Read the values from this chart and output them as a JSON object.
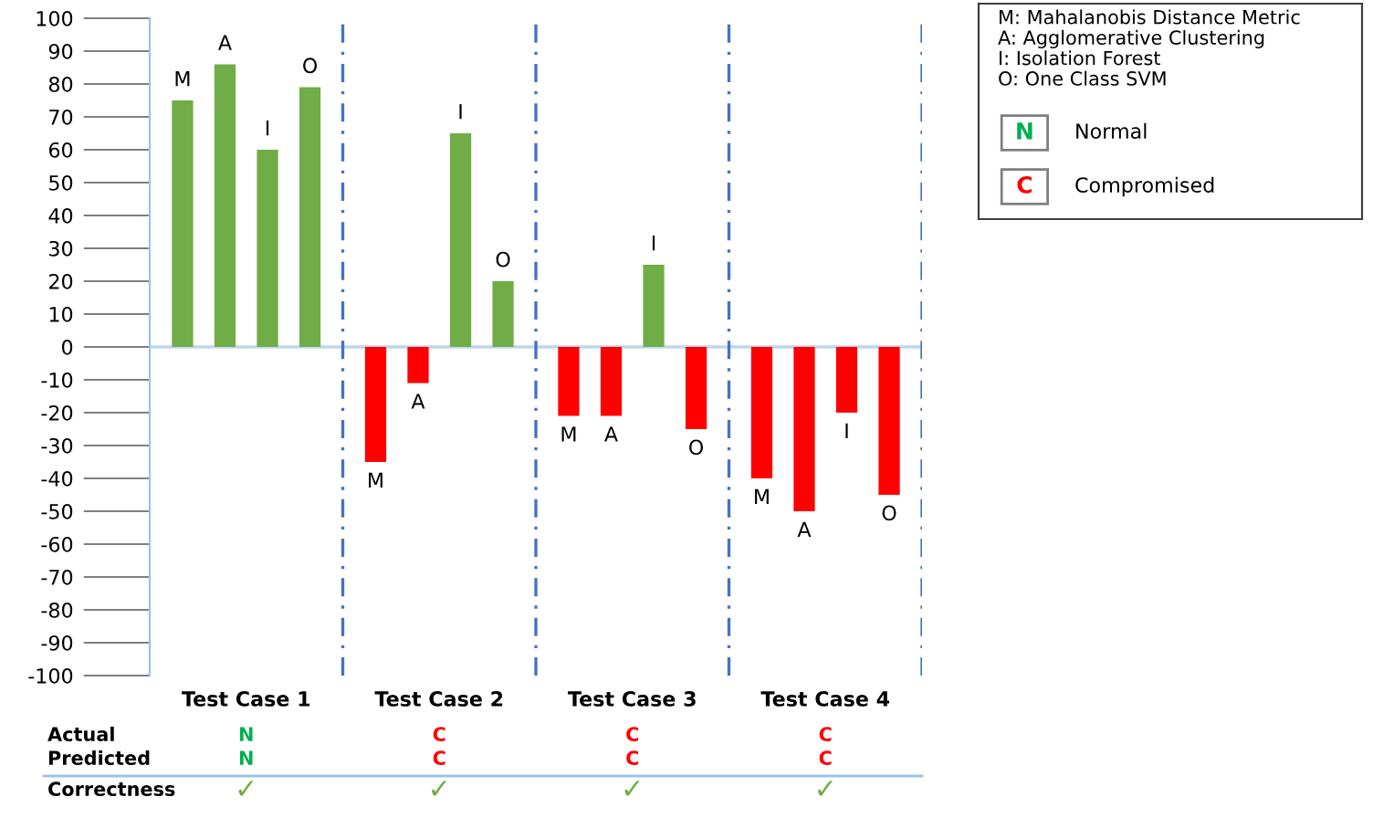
{
  "chart_data": {
    "type": "bar",
    "categories": [
      "Test Case 1",
      "Test Case 2",
      "Test Case 3",
      "Test Case 4"
    ],
    "series": [
      {
        "name": "M",
        "colors": [
          "#70ad47",
          "#ff0000",
          "#ff0000",
          "#ff0000"
        ],
        "values": [
          75,
          -35,
          -21,
          -40
        ]
      },
      {
        "name": "A",
        "colors": [
          "#70ad47",
          "#ff0000",
          "#ff0000",
          "#ff0000"
        ],
        "values": [
          86,
          -11,
          -21,
          -50
        ]
      },
      {
        "name": "I",
        "colors": [
          "#70ad47",
          "#70ad47",
          "#70ad47",
          "#ff0000"
        ],
        "values": [
          60,
          65,
          25,
          -20
        ]
      },
      {
        "name": "O",
        "colors": [
          "#70ad47",
          "#70ad47",
          "#ff0000",
          "#ff0000"
        ],
        "values": [
          79,
          20,
          -25,
          -45
        ]
      }
    ],
    "ylim": [
      -100,
      100
    ],
    "yticks": [
      -100,
      -90,
      -80,
      -70,
      -60,
      -50,
      -40,
      -30,
      -20,
      -10,
      0,
      10,
      20,
      30,
      40,
      50,
      60,
      70,
      80,
      90,
      100
    ],
    "ref_lines": [
      {
        "axis": "y",
        "value": 0,
        "color": "#bdd7ee",
        "line_style": "solid"
      }
    ],
    "grid": false,
    "legend": false,
    "annotations": [
      "M: Mahalanobis Distance Metric",
      "A: Agglomerative Clustering",
      "I: Isolation Forest",
      "O: One Class SVM",
      "N",
      "Normal",
      "C",
      "Compromised",
      "Actual",
      "Predicted",
      "Correctness",
      "N",
      "C",
      "C",
      "C",
      "N",
      "C",
      "C",
      "C",
      "✓",
      "✓",
      "✓",
      "✓"
    ]
  }
}
